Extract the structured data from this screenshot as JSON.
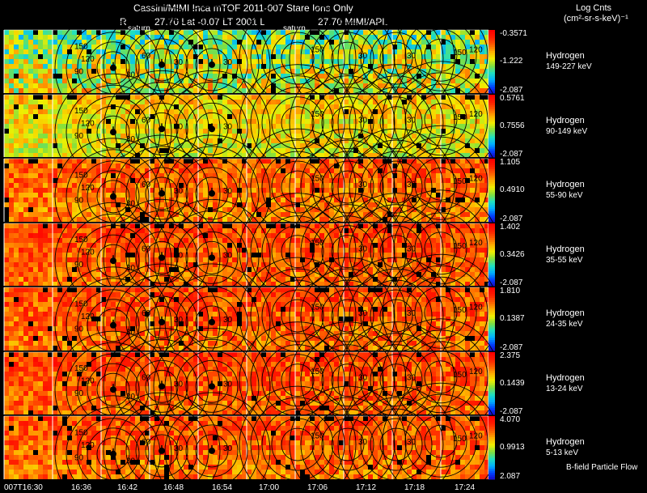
{
  "header": {
    "title": "Cassini/MIMI Inca mTOF  2011-007   Stare   Ions Only",
    "info_r": "R",
    "info_values": "27.70 Lat -0.07 LT 2001 L",
    "info_l": "27.70  MIMI/APL",
    "units_line1": "Log Cnts",
    "units_line2": "(cm²-sr-s-keV)⁻¹"
  },
  "saturn_labels": [
    "saturn",
    "saturn"
  ],
  "footer": {
    "bfield_label": "B-field Particle Flow",
    "time_labels": [
      "007T16:30",
      "16:36",
      "16:42",
      "16:48",
      "16:54",
      "17:00",
      "17:06",
      "17:12",
      "17:18",
      "17:24"
    ]
  },
  "colors": {
    "background": "#000000",
    "contour": "#000000",
    "grid": "#ffffff",
    "colormap": [
      "#1a00c0",
      "#0040ff",
      "#00b0ff",
      "#20e0c0",
      "#80e040",
      "#f0f000",
      "#ffb000",
      "#ff6000",
      "#ff2000",
      "#ff0000"
    ]
  },
  "contour_labels": [
    "150",
    "120",
    "90",
    "60",
    "30"
  ],
  "chart_data": {
    "type": "heatmap",
    "title": "Cassini/MIMI Inca mTOF  2011-007   Stare   Ions Only",
    "x": [
      "007T16:30",
      "16:36",
      "16:42",
      "16:48",
      "16:54",
      "17:00",
      "17:06",
      "17:12",
      "17:18",
      "17:24"
    ],
    "panels": [
      {
        "species": "Hydrogen",
        "energy": "149-227 keV",
        "cbar_max": "-0.3571",
        "cbar_mid": "-1.222",
        "cbar_min": "-2.087",
        "mean_level": 0.35
      },
      {
        "species": "Hydrogen",
        "energy": "90-149 keV",
        "cbar_max": "0.5761",
        "cbar_mid": "0.7556",
        "cbar_min": "-2.087",
        "mean_level": 0.62
      },
      {
        "species": "Hydrogen",
        "energy": "55-90 keV",
        "cbar_max": "1.105",
        "cbar_mid": "0.4910",
        "cbar_min": "-2.087",
        "mean_level": 0.8
      },
      {
        "species": "Hydrogen",
        "energy": "35-55 keV",
        "cbar_max": "1.402",
        "cbar_mid": "0.3426",
        "cbar_min": "-2.087",
        "mean_level": 0.84
      },
      {
        "species": "Hydrogen",
        "energy": "24-35 keV",
        "cbar_max": "1.810",
        "cbar_mid": "0.1387",
        "cbar_min": "-2.087",
        "mean_level": 0.83
      },
      {
        "species": "Hydrogen",
        "energy": "13-24 keV",
        "cbar_max": "2.375",
        "cbar_mid": "0.1439",
        "cbar_min": "-2.087",
        "mean_level": 0.84
      },
      {
        "species": "Hydrogen",
        "energy": "5-13 keV",
        "cbar_max": "4.070",
        "cbar_mid": "0.9913",
        "cbar_min": "2.087",
        "mean_level": 0.82
      }
    ]
  }
}
